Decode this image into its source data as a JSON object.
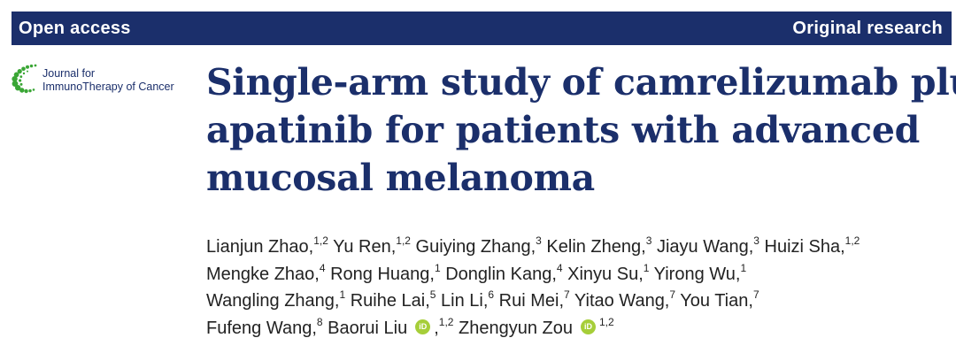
{
  "header": {
    "left_label": "Open access",
    "right_label": "Original research",
    "bar_color": "#1b2f6b"
  },
  "journal": {
    "line1": "Journal for",
    "line2": "ImmunoTherapy of Cancer",
    "logo_icon": "dotted-arc-logo",
    "logo_color": "#3aa635"
  },
  "title": {
    "line1": "Single-arm study of camrelizumab plus",
    "line2": "apatinib for patients with advanced",
    "line3": "mucosal melanoma"
  },
  "authors": {
    "line1": [
      {
        "name": "Lianjun Zhao,",
        "aff": "1,2"
      },
      {
        "name": "Yu Ren,",
        "aff": "1,2"
      },
      {
        "name": "Guiying Zhang,",
        "aff": "3"
      },
      {
        "name": "Kelin Zheng,",
        "aff": "3"
      },
      {
        "name": "Jiayu Wang,",
        "aff": "3"
      },
      {
        "name": "Huizi Sha,",
        "aff": "1,2"
      }
    ],
    "line2": [
      {
        "name": "Mengke Zhao,",
        "aff": "4"
      },
      {
        "name": "Rong Huang,",
        "aff": "1"
      },
      {
        "name": "Donglin Kang,",
        "aff": "4"
      },
      {
        "name": "Xinyu Su,",
        "aff": "1"
      },
      {
        "name": "Yirong Wu,",
        "aff": "1"
      }
    ],
    "line3": [
      {
        "name": "Wangling Zhang,",
        "aff": "1"
      },
      {
        "name": "Ruihe Lai,",
        "aff": "5"
      },
      {
        "name": "Lin Li,",
        "aff": "6"
      },
      {
        "name": "Rui Mei,",
        "aff": "7"
      },
      {
        "name": "Yitao Wang,",
        "aff": "7"
      },
      {
        "name": "You Tian,",
        "aff": "7"
      }
    ],
    "line4": {
      "first": {
        "name": "Fufeng Wang,",
        "aff": "8"
      },
      "second": {
        "name": "Baorui Liu",
        "aff": "1,2"
      },
      "third": {
        "name": "Zhengyun Zou",
        "aff": "1,2"
      },
      "orcid_label": "iD",
      "orcid_color": "#a6ce39",
      "separator": ","
    }
  }
}
